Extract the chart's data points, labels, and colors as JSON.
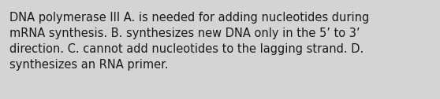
{
  "text": "DNA polymerase III A. is needed for adding nucleotides during\nmRNA synthesis. B. synthesizes new DNA only in the 5’ to 3’\ndirection. C. cannot add nucleotides to the lagging strand. D.\nsynthesizes an RNA primer.",
  "background_color": "#d4d4d4",
  "text_color": "#1a1a1a",
  "font_size": 10.5,
  "font_family": "DejaVu Sans",
  "fig_width": 5.58,
  "fig_height": 1.26,
  "dpi": 100
}
